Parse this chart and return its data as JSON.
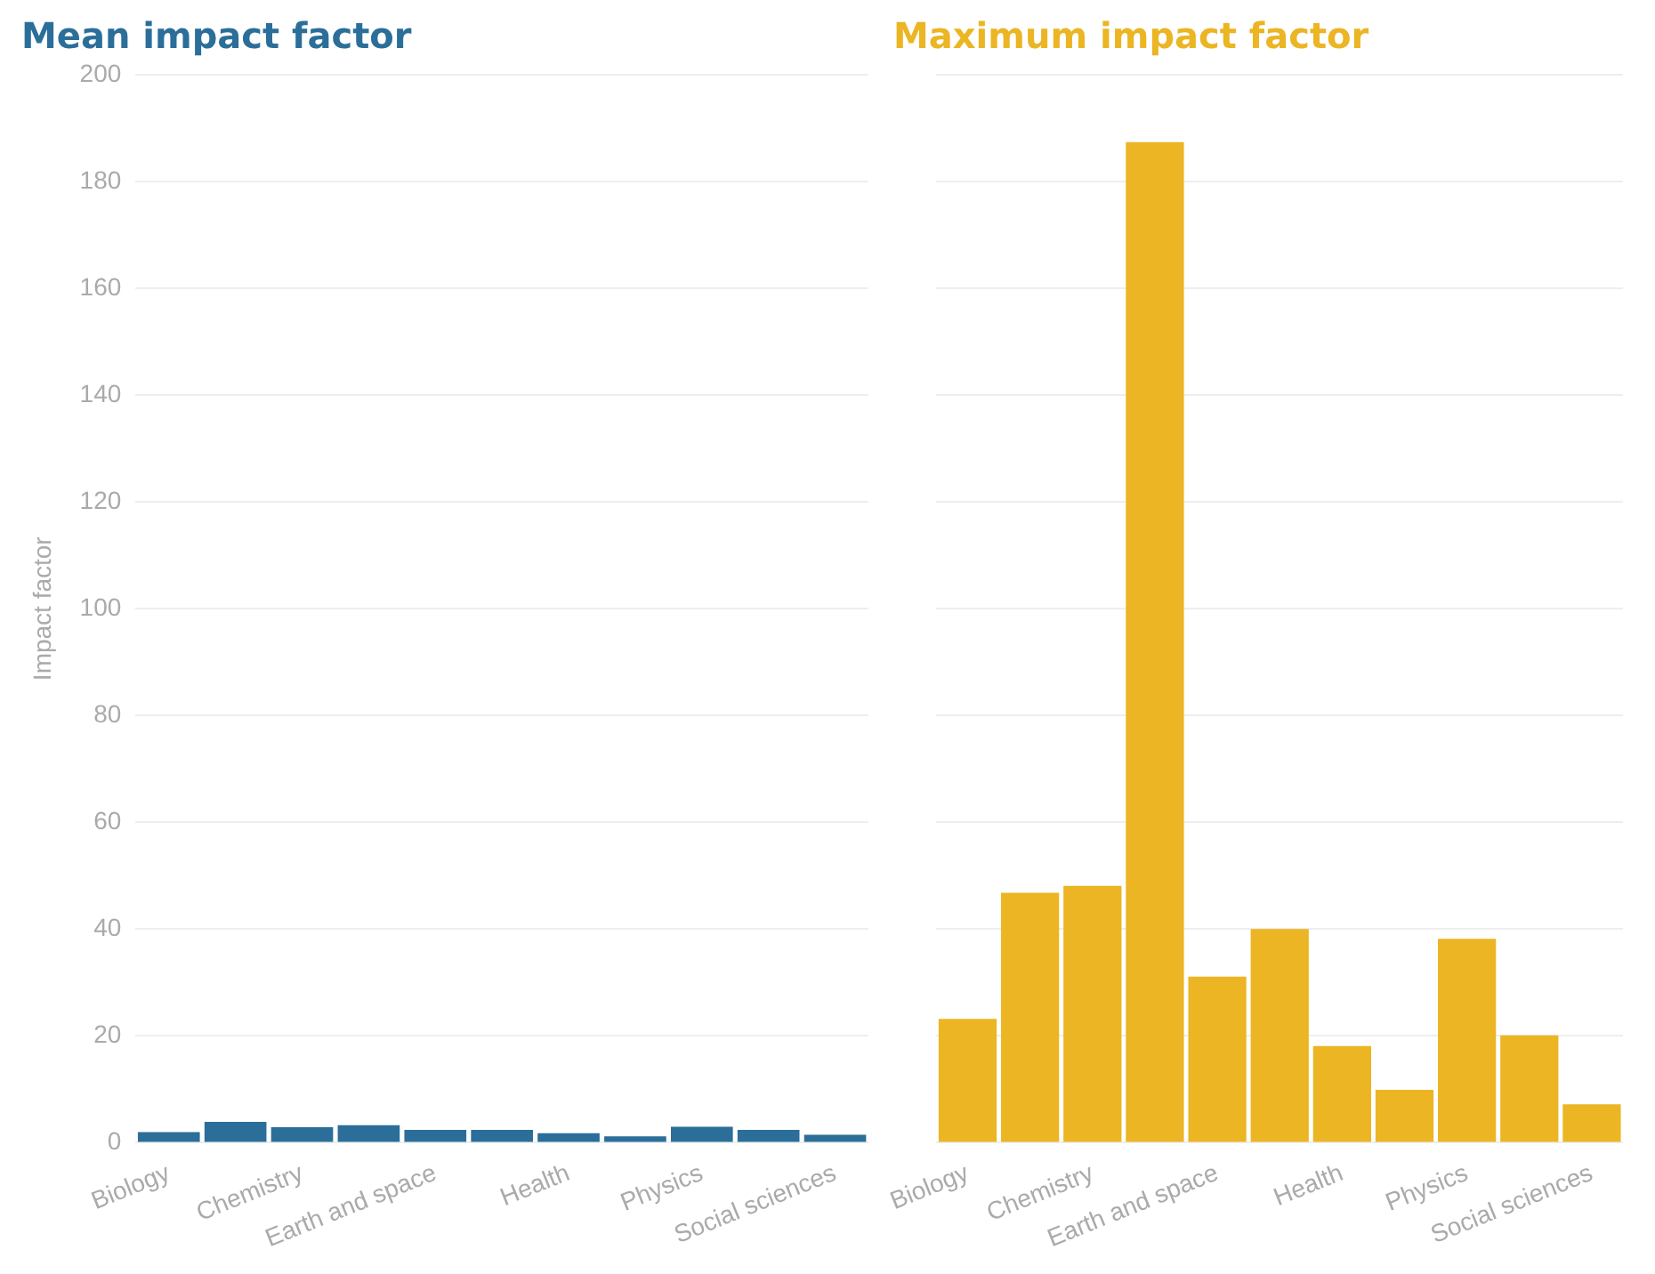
{
  "chart_data": [
    {
      "type": "bar",
      "title": "Mean impact factor",
      "ylabel": "Impact factor",
      "categories": [
        "Biology",
        null,
        "Chemistry",
        null,
        "Earth and space",
        null,
        "Health",
        null,
        "Physics",
        null,
        "Social sciences"
      ],
      "series": [
        {
          "color": "#2b6e99",
          "values": [
            2.0,
            3.9,
            2.9,
            3.3,
            2.4,
            2.4,
            1.8,
            1.2,
            3.0,
            2.4,
            1.5
          ]
        }
      ],
      "ylim": [
        0,
        200
      ],
      "yticks": [
        0,
        20,
        40,
        60,
        80,
        100,
        120,
        140,
        160,
        180,
        200
      ],
      "grid": "y",
      "legend": false
    },
    {
      "type": "bar",
      "title": "Maximum impact factor",
      "categories": [
        "Biology",
        null,
        "Chemistry",
        null,
        "Earth and space",
        null,
        "Health",
        null,
        "Physics",
        null,
        "Social sciences"
      ],
      "series": [
        {
          "color": "#ebb523",
          "values": [
            23.2,
            46.8,
            48.1,
            187.4,
            31.1,
            40,
            18.1,
            9.9,
            38.2,
            20.1,
            7.2
          ]
        }
      ],
      "ylim": [
        0,
        200
      ],
      "yticks": [
        0,
        20,
        40,
        60,
        80,
        100,
        120,
        140,
        160,
        180,
        200
      ],
      "grid": "y",
      "legend": false,
      "tick_labels": "x"
    }
  ]
}
